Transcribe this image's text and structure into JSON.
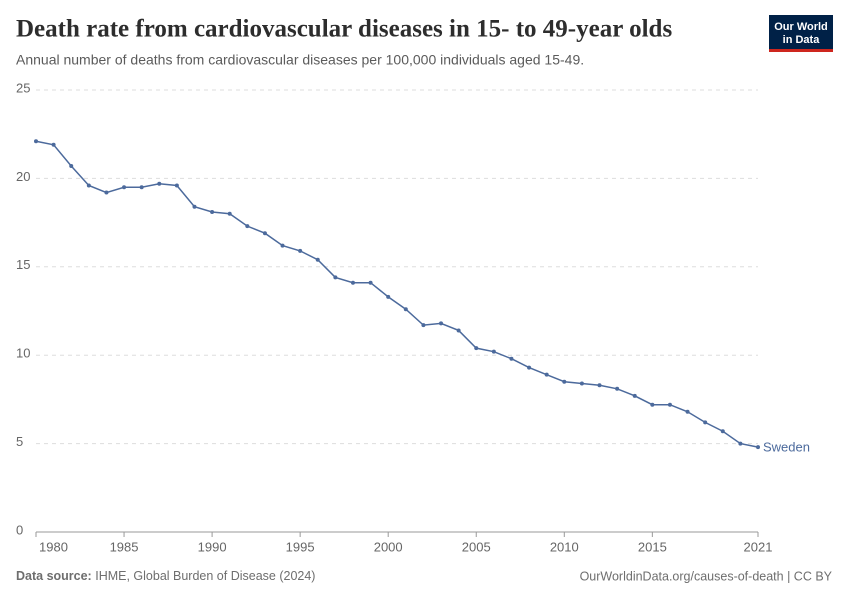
{
  "chart_data": {
    "type": "line",
    "title": "Death rate from cardiovascular diseases in 15- to 49-year olds",
    "subtitle": "Annual number of deaths from cardiovascular diseases per 100,000 individuals aged 15-49.",
    "x": [
      1980,
      1981,
      1982,
      1983,
      1984,
      1985,
      1986,
      1987,
      1988,
      1989,
      1990,
      1991,
      1992,
      1993,
      1994,
      1995,
      1996,
      1997,
      1998,
      1999,
      2000,
      2001,
      2002,
      2003,
      2004,
      2005,
      2006,
      2007,
      2008,
      2009,
      2010,
      2011,
      2012,
      2013,
      2014,
      2015,
      2016,
      2017,
      2018,
      2019,
      2020,
      2021
    ],
    "series": [
      {
        "name": "Sweden",
        "color": "#4c6a9c",
        "values": [
          22.1,
          21.9,
          20.7,
          19.6,
          19.2,
          19.5,
          19.5,
          19.7,
          19.6,
          18.4,
          18.1,
          18.0,
          17.3,
          16.9,
          16.2,
          15.9,
          15.4,
          14.4,
          14.1,
          14.1,
          13.3,
          12.6,
          11.7,
          11.8,
          11.4,
          10.4,
          10.2,
          9.8,
          9.3,
          8.9,
          8.5,
          8.4,
          8.3,
          8.1,
          7.7,
          7.2,
          7.2,
          6.8,
          6.2,
          5.7,
          5.0,
          4.8
        ]
      }
    ],
    "xlim": [
      1980,
      2021
    ],
    "xticks": [
      1980,
      1985,
      1990,
      1995,
      2000,
      2005,
      2010,
      2015,
      2021
    ],
    "ylim": [
      0,
      25
    ],
    "yticks": [
      0,
      5,
      10,
      15,
      20,
      25
    ],
    "grid": true,
    "source_label": "Data source:",
    "source": "IHME, Global Burden of Disease (2024)",
    "url": "OurWorldinData.org/causes-of-death | CC BY",
    "logo": [
      "Our World",
      "in Data"
    ]
  }
}
